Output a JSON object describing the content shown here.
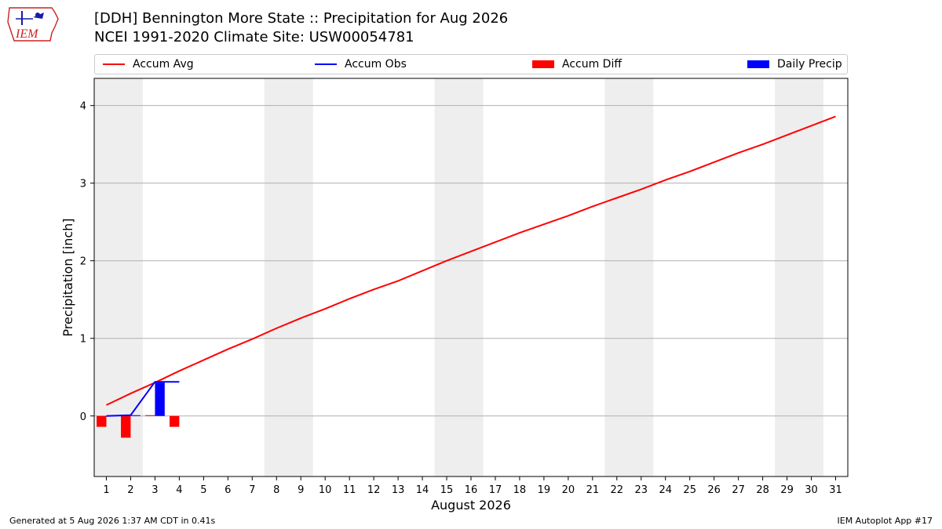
{
  "header": {
    "title": "[DDH] Bennington More State :: Precipitation for Aug 2026",
    "subtitle": "NCEI 1991-2020 Climate Site: USW00054781",
    "logo_text": "IEM"
  },
  "legend": {
    "items": [
      {
        "label": "Accum Avg",
        "kind": "line",
        "color": "#ff0000"
      },
      {
        "label": "Accum Obs",
        "kind": "line",
        "color": "#0000ff"
      },
      {
        "label": "Accum Diff",
        "kind": "patch",
        "color": "#ff0000"
      },
      {
        "label": "Daily Precip",
        "kind": "patch",
        "color": "#0000ff"
      }
    ]
  },
  "footer": {
    "left": "Generated at 5 Aug 2026 1:37 AM CDT in 0.41s",
    "right": "IEM Autoplot App #17"
  },
  "chart_data": {
    "type": "line",
    "xlabel": "August 2026",
    "ylabel": "Precipitation [inch]",
    "x": [
      1,
      2,
      3,
      4,
      5,
      6,
      7,
      8,
      9,
      10,
      11,
      12,
      13,
      14,
      15,
      16,
      17,
      18,
      19,
      20,
      21,
      22,
      23,
      24,
      25,
      26,
      27,
      28,
      29,
      30,
      31
    ],
    "x_tick_labels": [
      "1",
      "2",
      "3",
      "4",
      "5",
      "6",
      "7",
      "8",
      "9",
      "10",
      "11",
      "12",
      "13",
      "14",
      "15",
      "16",
      "17",
      "18",
      "19",
      "20",
      "21",
      "22",
      "23",
      "24",
      "25",
      "26",
      "27",
      "28",
      "29",
      "30",
      "31"
    ],
    "y_ticks": [
      0,
      1,
      2,
      3,
      4
    ],
    "xlim": [
      0.5,
      31.5
    ],
    "ylim": [
      -0.78,
      4.35
    ],
    "grid": "horizontal",
    "weekend_shading": [
      [
        0.5,
        2.5
      ],
      [
        7.5,
        9.5
      ],
      [
        14.5,
        16.5
      ],
      [
        21.5,
        23.5
      ],
      [
        28.5,
        30.5
      ]
    ],
    "shading_color": "#eeeeee",
    "series": [
      {
        "name": "Accum Avg",
        "kind": "line",
        "color": "#ff0000",
        "values": [
          0.14,
          0.29,
          0.43,
          0.58,
          0.72,
          0.86,
          0.99,
          1.13,
          1.26,
          1.38,
          1.51,
          1.63,
          1.74,
          1.87,
          2.0,
          2.12,
          2.24,
          2.36,
          2.47,
          2.58,
          2.7,
          2.81,
          2.92,
          3.04,
          3.15,
          3.27,
          3.39,
          3.5,
          3.62,
          3.74,
          3.86
        ]
      },
      {
        "name": "Accum Obs",
        "kind": "step",
        "color": "#0000ff",
        "x": [
          1,
          2,
          3,
          4
        ],
        "values": [
          0.0,
          0.01,
          0.44,
          0.44
        ]
      },
      {
        "name": "Accum Diff",
        "kind": "bar",
        "color": "#ff0000",
        "x": [
          1,
          2,
          3,
          4
        ],
        "values": [
          -0.14,
          -0.28,
          0.01,
          -0.14
        ]
      },
      {
        "name": "Daily Precip",
        "kind": "bar",
        "color": "#0000ff",
        "x": [
          1,
          2,
          3,
          4
        ],
        "values": [
          0.0,
          0.01,
          0.43,
          0.0
        ]
      }
    ]
  }
}
